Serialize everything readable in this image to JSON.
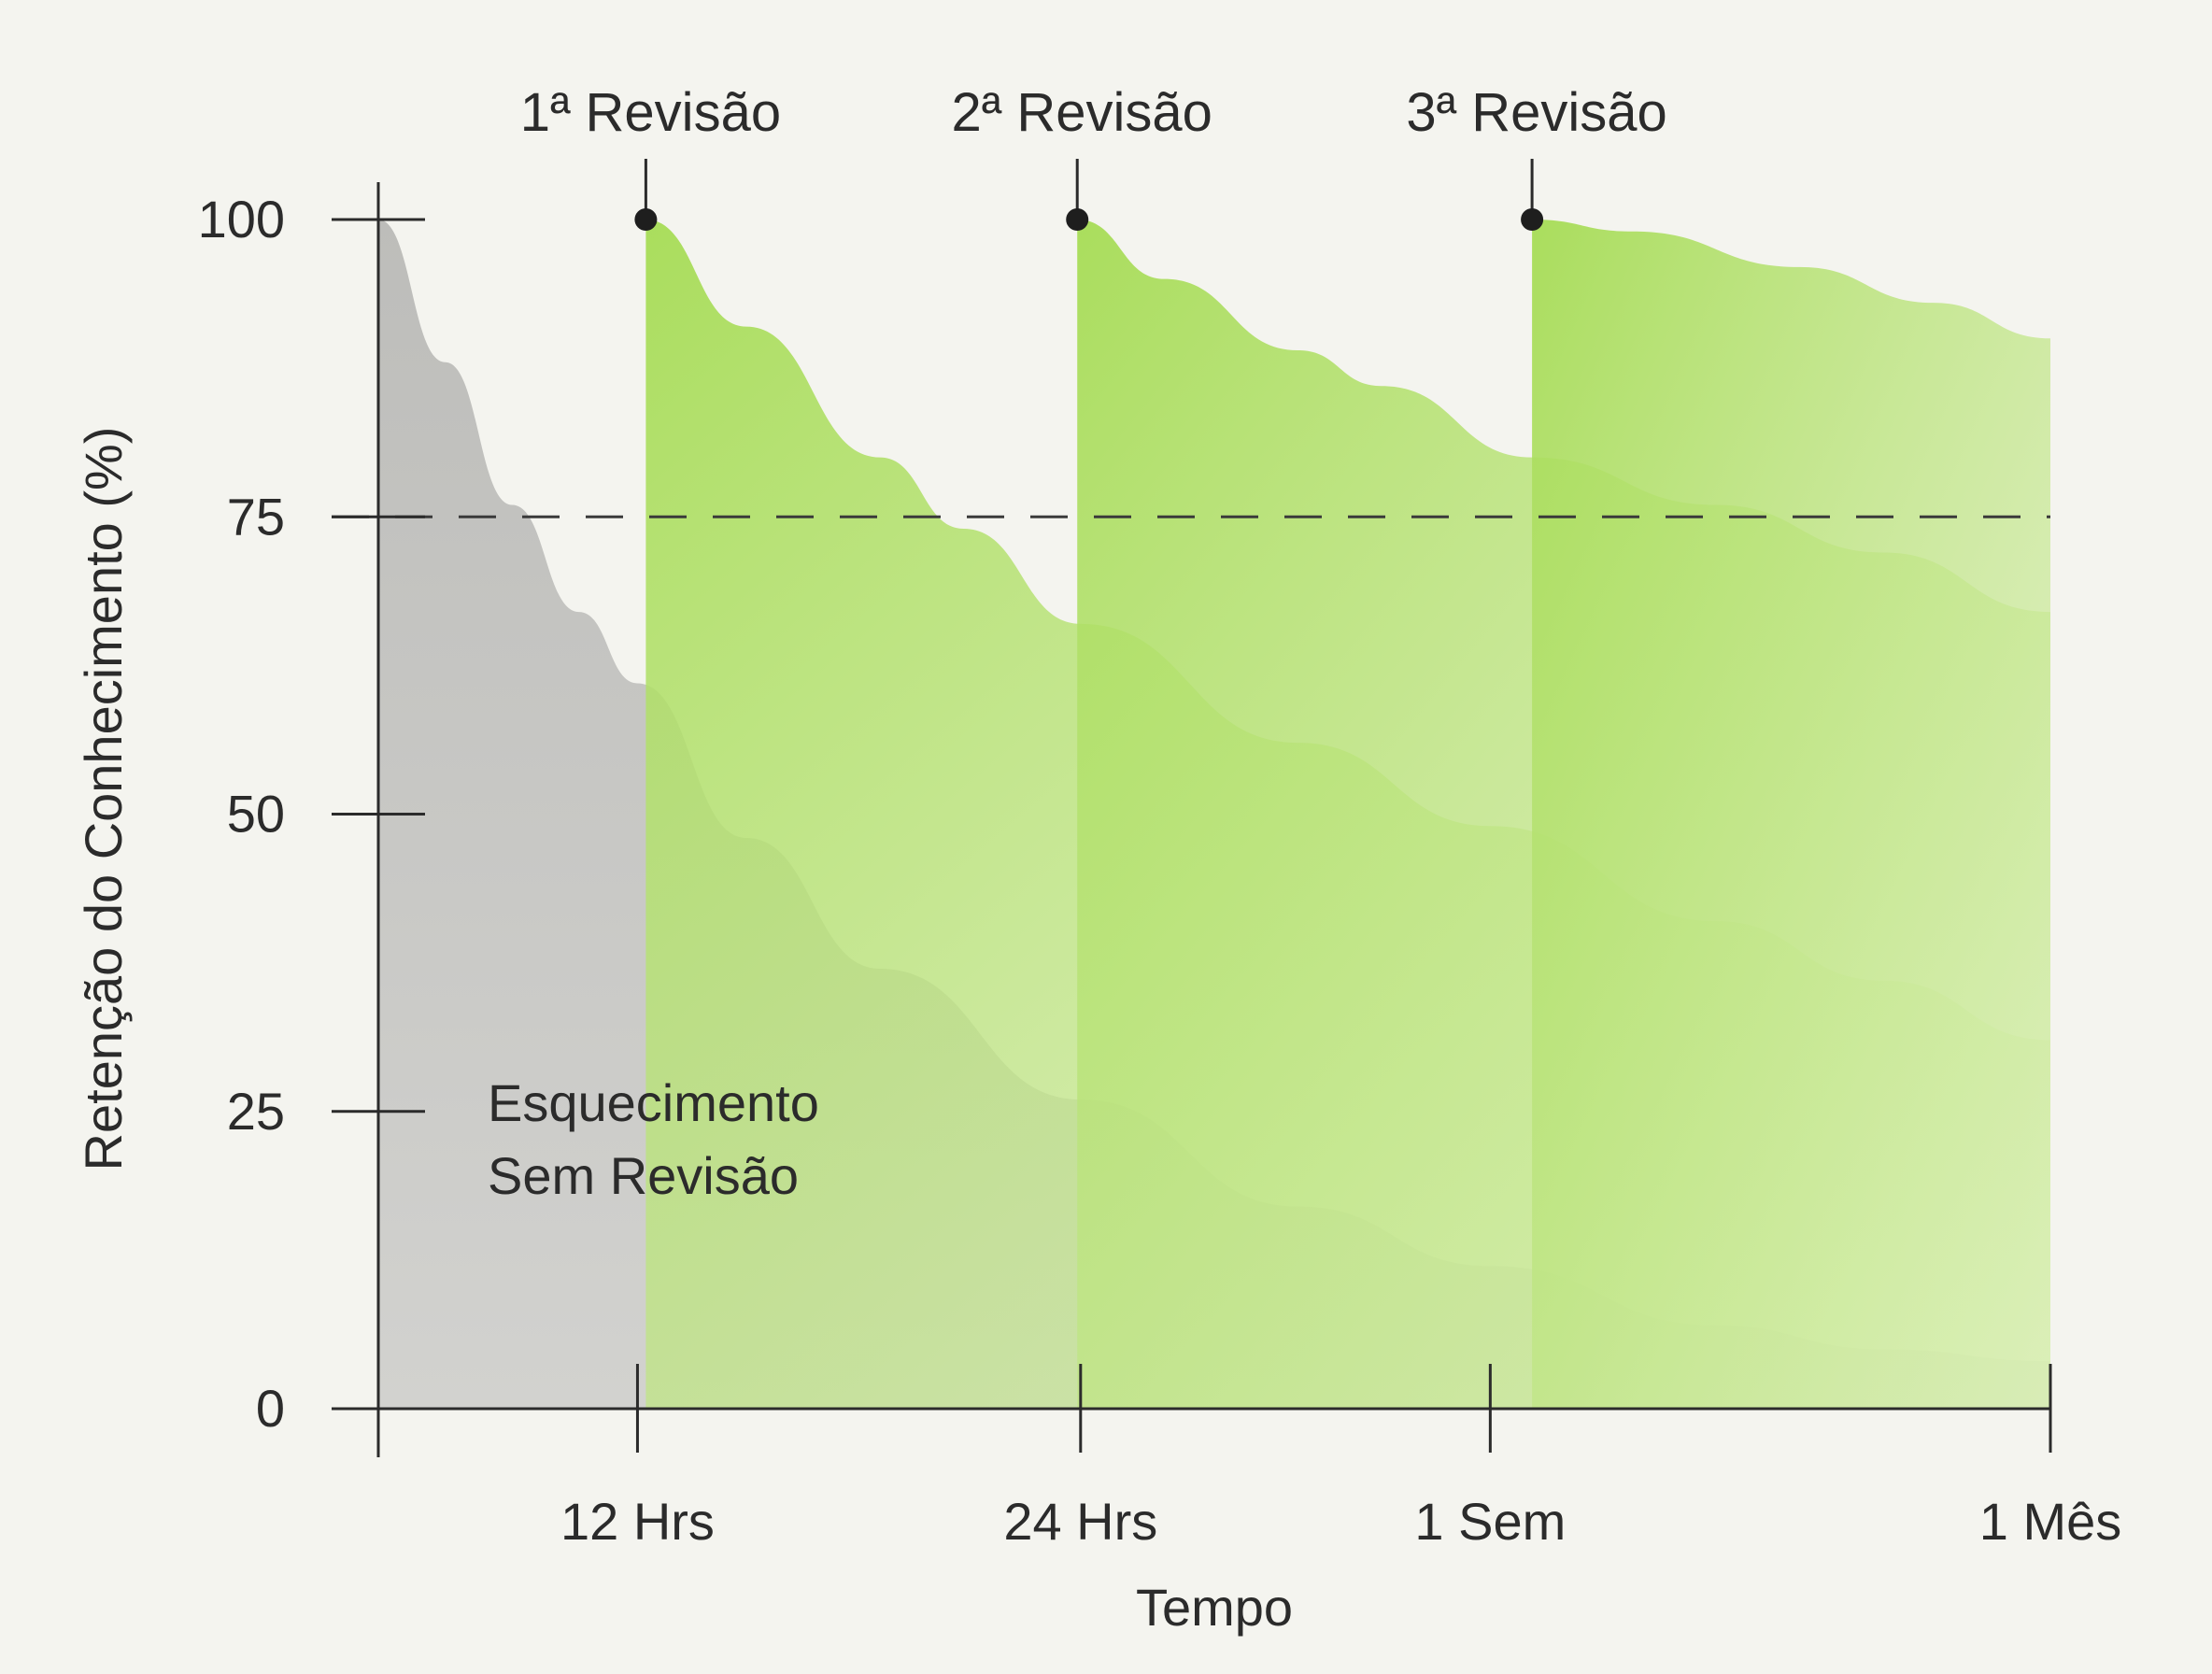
{
  "chart_data": {
    "type": "area",
    "title": "",
    "xlabel": "Tempo",
    "ylabel": "Retenção do Conhecimento (%)",
    "ylim": [
      0,
      100
    ],
    "yticks": [
      0,
      25,
      50,
      75,
      100
    ],
    "x_ticks": [
      {
        "label": "12 Hrs",
        "pos": 0.155
      },
      {
        "label": "24 Hrs",
        "pos": 0.42
      },
      {
        "label": "1 Sem",
        "pos": 0.665
      },
      {
        "label": "1 Mês",
        "pos": 1.0
      }
    ],
    "threshold": {
      "value": 75,
      "style": "dashed"
    },
    "annotation": {
      "lines": [
        "Esquecimento",
        "Sem Revisão"
      ]
    },
    "reviews": [
      {
        "label": "1ª Revisão",
        "pos": 0.16,
        "value": 100
      },
      {
        "label": "2ª Revisão",
        "pos": 0.418,
        "value": 100
      },
      {
        "label": "3ª Revisão",
        "pos": 0.69,
        "value": 100
      }
    ],
    "series": [
      {
        "name": "Esquecimento Sem Revisão",
        "color": "#c9c9c6",
        "points": [
          [
            0,
            100
          ],
          [
            0.04,
            88
          ],
          [
            0.08,
            76
          ],
          [
            0.12,
            67
          ],
          [
            0.155,
            61
          ],
          [
            0.22,
            48
          ],
          [
            0.3,
            37
          ],
          [
            0.42,
            26
          ],
          [
            0.55,
            17
          ],
          [
            0.665,
            12
          ],
          [
            0.8,
            7
          ],
          [
            0.9,
            5
          ],
          [
            1.0,
            4
          ]
        ]
      },
      {
        "color": "#a6dc55",
        "points": [
          [
            0.16,
            100
          ],
          [
            0.22,
            91
          ],
          [
            0.3,
            80
          ],
          [
            0.35,
            74
          ],
          [
            0.42,
            66
          ],
          [
            0.55,
            56
          ],
          [
            0.665,
            49
          ],
          [
            0.8,
            41
          ],
          [
            0.9,
            36
          ],
          [
            1.0,
            31
          ]
        ]
      },
      {
        "color": "#a6dc55",
        "points": [
          [
            0.418,
            100
          ],
          [
            0.47,
            95
          ],
          [
            0.55,
            89
          ],
          [
            0.6,
            86
          ],
          [
            0.69,
            80
          ],
          [
            0.8,
            76
          ],
          [
            0.9,
            72
          ],
          [
            1.0,
            67
          ]
        ]
      },
      {
        "color": "#a6dc55",
        "points": [
          [
            0.69,
            100
          ],
          [
            0.75,
            99
          ],
          [
            0.85,
            96
          ],
          [
            0.93,
            93
          ],
          [
            1.0,
            90
          ]
        ]
      }
    ]
  },
  "colors": {
    "background": "#f4f4ef",
    "grey_area": "#c9c9c6",
    "green_area": "#a6dc55",
    "axis": "#2b2b2b"
  }
}
